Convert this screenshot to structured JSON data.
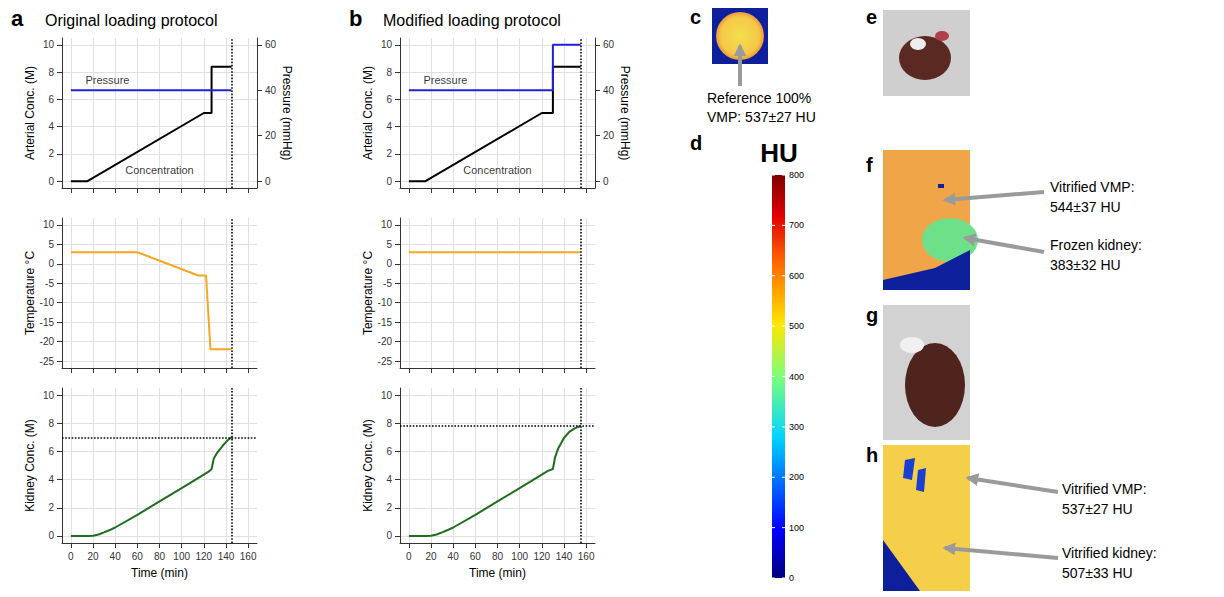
{
  "chart_data": [
    {
      "type": "line",
      "panel": "a",
      "title": "Original loading protocol",
      "ylabel": "Arterial Conc. (M)",
      "y2label": "Pressure (mmHg)",
      "xlim": [
        -8,
        168
      ],
      "xticks": [
        0,
        20,
        40,
        60,
        80,
        100,
        120,
        140,
        160
      ],
      "ylim": [
        -0.5,
        10.5
      ],
      "yticks": [
        0,
        2,
        4,
        6,
        8,
        10
      ],
      "y2lim": [
        -3,
        63
      ],
      "y2ticks": [
        0,
        20,
        40,
        60
      ],
      "grid": true,
      "tick_labels": "y",
      "vline": 145,
      "series": [
        {
          "color": "#000000",
          "line_style": "solid",
          "x": [
            0,
            15,
            120,
            127,
            127,
            145
          ],
          "values": [
            0,
            0,
            5,
            5,
            8.4,
            8.4
          ]
        },
        {
          "color": "#2222dd",
          "line_style": "solid",
          "axis": "y2",
          "x": [
            0,
            145
          ],
          "values": [
            40,
            40
          ]
        }
      ],
      "annotations": [
        {
          "text": "Pressure",
          "x": 33,
          "y": 7.4
        },
        {
          "text": "Concentration",
          "x": 80,
          "y": 0.8
        }
      ]
    },
    {
      "type": "line",
      "ylabel": "Temperature °C",
      "xlim": [
        -8,
        168
      ],
      "xticks": [
        0,
        20,
        40,
        60,
        80,
        100,
        120,
        140,
        160
      ],
      "ylim": [
        -26.8,
        11.8
      ],
      "yticks": [
        -25,
        -20,
        -15,
        -10,
        -5,
        0,
        5,
        10
      ],
      "grid": true,
      "tick_labels": "y",
      "vline": 145,
      "series": [
        {
          "color": "#f5a623",
          "line_style": "solid",
          "x": [
            0,
            60,
            115,
            122,
            126,
            145
          ],
          "values": [
            3,
            3,
            -3,
            -3,
            -22,
            -22
          ]
        }
      ]
    },
    {
      "type": "line",
      "ylabel": "Kidney Conc. (M)",
      "xlabel": "Time (min)",
      "xlim": [
        -8,
        168
      ],
      "xticks": [
        0,
        20,
        40,
        60,
        80,
        100,
        120,
        140,
        160
      ],
      "ylim": [
        -0.5,
        10.5
      ],
      "yticks": [
        0,
        2,
        4,
        6,
        8,
        10
      ],
      "grid": true,
      "vline": 145,
      "hline": 7,
      "series": [
        {
          "color": "#1e6e1e",
          "line_style": "solid",
          "x": [
            0,
            15,
            20,
            25,
            30,
            35,
            40,
            60,
            80,
            100,
            120,
            125,
            127,
            129,
            132,
            137,
            141,
            145
          ],
          "values": [
            0,
            0,
            0.02,
            0.1,
            0.25,
            0.42,
            0.6,
            1.5,
            2.45,
            3.4,
            4.35,
            4.6,
            4.75,
            5.5,
            5.9,
            6.4,
            6.75,
            7.0
          ]
        }
      ]
    },
    {
      "type": "line",
      "panel": "b",
      "title": "Modified loading protocol",
      "ylabel": "Arterial Conc. (M)",
      "y2label": "Pressure (mmHg)",
      "xlim": [
        -8,
        168
      ],
      "xticks": [
        0,
        20,
        40,
        60,
        80,
        100,
        120,
        140,
        160
      ],
      "ylim": [
        -0.5,
        10.5
      ],
      "yticks": [
        0,
        2,
        4,
        6,
        8,
        10
      ],
      "y2lim": [
        -3,
        63
      ],
      "y2ticks": [
        0,
        20,
        40,
        60
      ],
      "grid": true,
      "tick_labels": "y",
      "vline": 155,
      "series": [
        {
          "color": "#000000",
          "line_style": "solid",
          "x": [
            0,
            15,
            120,
            130,
            130,
            155
          ],
          "values": [
            0,
            0,
            5,
            5,
            8.4,
            8.4
          ]
        },
        {
          "color": "#2222dd",
          "line_style": "solid",
          "axis": "y2",
          "x": [
            0,
            130,
            130,
            155
          ],
          "values": [
            40,
            40,
            60,
            60
          ]
        }
      ],
      "annotations": [
        {
          "text": "Pressure",
          "x": 33,
          "y": 7.4
        },
        {
          "text": "Concentration",
          "x": 80,
          "y": 0.8
        }
      ]
    },
    {
      "type": "line",
      "ylabel": "Temperature °C",
      "xlim": [
        -8,
        168
      ],
      "xticks": [
        0,
        20,
        40,
        60,
        80,
        100,
        120,
        140,
        160
      ],
      "ylim": [
        -26.8,
        11.8
      ],
      "yticks": [
        -25,
        -20,
        -15,
        -10,
        -5,
        0,
        5,
        10
      ],
      "grid": true,
      "tick_labels": "y",
      "vline": 155,
      "series": [
        {
          "color": "#f5a623",
          "line_style": "solid",
          "x": [
            0,
            155
          ],
          "values": [
            3,
            3
          ]
        }
      ]
    },
    {
      "type": "line",
      "ylabel": "Kidney Conc. (M)",
      "xlabel": "Time (min)",
      "xlim": [
        -8,
        168
      ],
      "xticks": [
        0,
        20,
        40,
        60,
        80,
        100,
        120,
        140,
        160
      ],
      "ylim": [
        -0.5,
        10.5
      ],
      "yticks": [
        0,
        2,
        4,
        6,
        8,
        10
      ],
      "grid": true,
      "vline": 155,
      "hline": 7.8,
      "series": [
        {
          "color": "#1e6e1e",
          "line_style": "solid",
          "x": [
            0,
            15,
            20,
            25,
            30,
            35,
            40,
            60,
            80,
            100,
            120,
            125,
            130,
            132,
            135,
            140,
            145,
            150,
            155
          ],
          "values": [
            0,
            0,
            0.02,
            0.1,
            0.25,
            0.42,
            0.6,
            1.5,
            2.45,
            3.4,
            4.35,
            4.6,
            4.75,
            5.6,
            6.25,
            6.95,
            7.4,
            7.65,
            7.8
          ]
        }
      ]
    }
  ],
  "panels": [
    {
      "label": "c",
      "texts": [
        "Reference 100%",
        "VMP: 537±27 HU"
      ]
    },
    {
      "label": "d",
      "title": "HU",
      "colorbar_range": [
        0,
        800
      ],
      "colorbar_ticks": [
        0,
        100,
        200,
        300,
        400,
        500,
        600,
        700,
        800
      ]
    },
    {
      "label": "e"
    },
    {
      "label": "f",
      "callouts": [
        [
          "Vitrified VMP:",
          "544±37 HU"
        ],
        [
          "Frozen kidney:",
          "383±32 HU"
        ]
      ]
    },
    {
      "label": "g"
    },
    {
      "label": "h",
      "callouts": [
        [
          "Vitrified VMP:",
          "537±27 HU"
        ],
        [
          "Vitrified kidney:",
          "507±33 HU"
        ]
      ]
    }
  ]
}
